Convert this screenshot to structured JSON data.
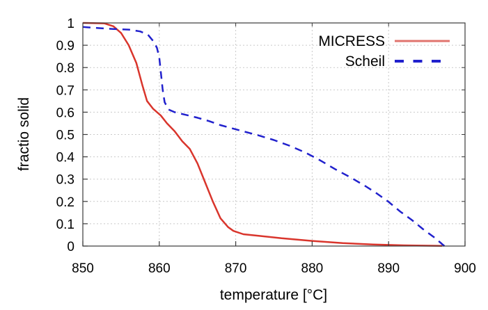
{
  "chart_data": {
    "type": "line",
    "title": "",
    "xlabel": "temperature [°C]",
    "ylabel": "fractio solid",
    "xlim": [
      850,
      900
    ],
    "ylim": [
      0,
      1
    ],
    "xticks": [
      850,
      860,
      870,
      880,
      890,
      900
    ],
    "xtick_labels": [
      "850",
      "860",
      "870",
      "880",
      "890",
      "900"
    ],
    "yticks": [
      0,
      0.1,
      0.2,
      0.3,
      0.4,
      0.5,
      0.6,
      0.7,
      0.8,
      0.9,
      1
    ],
    "ytick_labels": [
      "0",
      "0.1",
      "0.2",
      "0.3",
      "0.4",
      "0.5",
      "0.6",
      "0.7",
      "0.8",
      "0.9",
      "1"
    ],
    "grid": true,
    "legend_position": "top-right-inside",
    "series": [
      {
        "name": "MICRESS",
        "color": "#d9352c",
        "line_style": "solid",
        "points": [
          [
            850,
            1.0
          ],
          [
            852.8,
            0.998
          ],
          [
            854,
            0.985
          ],
          [
            855,
            0.955
          ],
          [
            856,
            0.9
          ],
          [
            857,
            0.82
          ],
          [
            857.8,
            0.72
          ],
          [
            858.4,
            0.65
          ],
          [
            859.2,
            0.615
          ],
          [
            860.2,
            0.585
          ],
          [
            861,
            0.55
          ],
          [
            862,
            0.515
          ],
          [
            863,
            0.47
          ],
          [
            864,
            0.435
          ],
          [
            865,
            0.37
          ],
          [
            866,
            0.285
          ],
          [
            867,
            0.2
          ],
          [
            868,
            0.125
          ],
          [
            869,
            0.085
          ],
          [
            869.7,
            0.068
          ],
          [
            871,
            0.053
          ],
          [
            873,
            0.046
          ],
          [
            876,
            0.035
          ],
          [
            880,
            0.023
          ],
          [
            884,
            0.013
          ],
          [
            888,
            0.007
          ],
          [
            892,
            0.003
          ],
          [
            897,
            0.001
          ]
        ]
      },
      {
        "name": "Scheil",
        "color": "#2121cd",
        "line_style": "dashed",
        "points": [
          [
            850,
            0.982
          ],
          [
            852,
            0.977
          ],
          [
            854,
            0.973
          ],
          [
            856,
            0.97
          ],
          [
            857.5,
            0.962
          ],
          [
            858.5,
            0.948
          ],
          [
            859.3,
            0.915
          ],
          [
            859.7,
            0.888
          ],
          [
            860.0,
            0.845
          ],
          [
            860.2,
            0.78
          ],
          [
            860.45,
            0.7
          ],
          [
            860.7,
            0.645
          ],
          [
            861.2,
            0.612
          ],
          [
            862,
            0.6
          ],
          [
            863.5,
            0.588
          ],
          [
            865,
            0.575
          ],
          [
            866.5,
            0.56
          ],
          [
            868,
            0.542
          ],
          [
            869.5,
            0.528
          ],
          [
            871,
            0.514
          ],
          [
            873,
            0.496
          ],
          [
            875,
            0.475
          ],
          [
            877,
            0.45
          ],
          [
            879,
            0.421
          ],
          [
            881,
            0.385
          ],
          [
            883,
            0.345
          ],
          [
            885,
            0.308
          ],
          [
            887,
            0.268
          ],
          [
            888.5,
            0.235
          ],
          [
            890,
            0.198
          ],
          [
            891.5,
            0.155
          ],
          [
            893,
            0.118
          ],
          [
            894.5,
            0.076
          ],
          [
            896,
            0.038
          ],
          [
            897.3,
            0.0
          ]
        ]
      }
    ]
  },
  "colors": {
    "background": "#ffffff",
    "axis": "#3a3a3a",
    "grid": "#c9c9c9",
    "text": "#000000",
    "micress": "#d9352c",
    "scheil": "#2121cd",
    "legend_red_sample": "#e0736d"
  }
}
